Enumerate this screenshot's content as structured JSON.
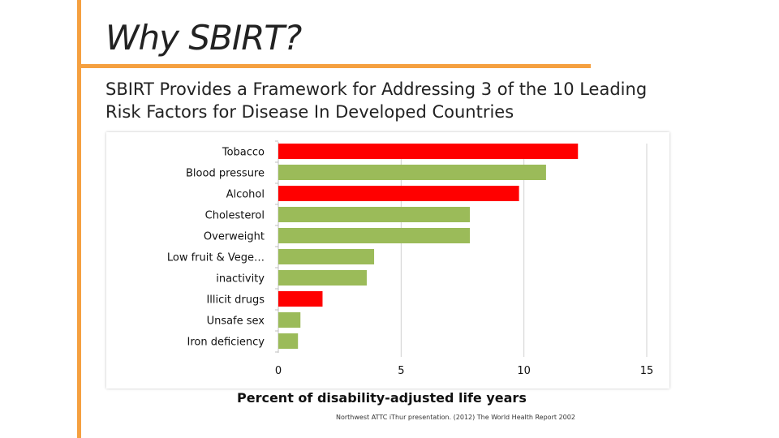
{
  "slide": {
    "title": "Why SBIRT?",
    "subtitle": "SBIRT Provides a Framework for Addressing 3 of the 10 Leading Risk Factors for Disease In Developed Countries",
    "source": "Northwest ATTC iThur presentation. (2012) The World Health Report 2002"
  },
  "colors": {
    "accent": "#f5a040",
    "highlight_bar": "#ff0000",
    "default_bar": "#9bbb59",
    "gridline": "#d0d0d0"
  },
  "chart_data": {
    "type": "bar",
    "orientation": "horizontal",
    "categories": [
      "Tobacco",
      "Blood pressure",
      "Alcohol",
      "Cholesterol",
      "Overweight",
      "Low fruit & Vege…",
      "inactivity",
      "Illicit drugs",
      "Unsafe sex",
      "Iron deficiency"
    ],
    "values": [
      12.2,
      10.9,
      9.8,
      7.8,
      7.8,
      3.9,
      3.6,
      1.8,
      0.9,
      0.8
    ],
    "highlighted": [
      true,
      false,
      true,
      false,
      false,
      false,
      false,
      true,
      false,
      false
    ],
    "xlabel": "Percent of disability-adjusted life years",
    "xlim": [
      0,
      15
    ],
    "xticks": [
      "0",
      "5",
      "10",
      "15"
    ],
    "grid": true
  }
}
